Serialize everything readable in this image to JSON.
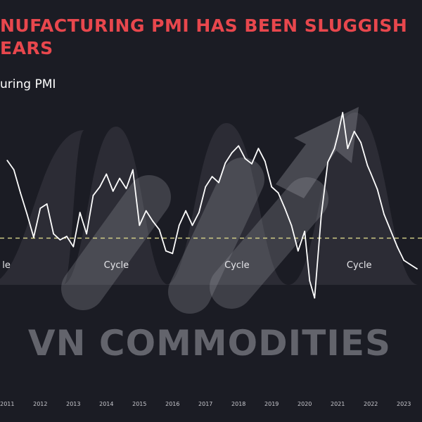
{
  "title_lines": [
    "NUFACTURING PMI HAS BEEN SLUGGISH",
    "EARS"
  ],
  "series_label": "uring PMI",
  "watermark": "VN COMMODITIES",
  "colors": {
    "background": "#1b1c24",
    "title": "#e8474d",
    "line": "#ffffff",
    "reference_line": "#d9d58a",
    "cycle_shape": "#3a3b44",
    "watermark": "#6b6c74"
  },
  "chart_data": {
    "type": "line",
    "title": "NUFACTURING PMI HAS BEEN SLUGGISH EARS",
    "series": [
      {
        "name": "uring PMI",
        "x": [
          2011.0,
          2011.2,
          2011.4,
          2011.6,
          2011.8,
          2012.0,
          2012.2,
          2012.4,
          2012.6,
          2012.8,
          2013.0,
          2013.2,
          2013.4,
          2013.6,
          2013.8,
          2014.0,
          2014.2,
          2014.4,
          2014.6,
          2014.8,
          2015.0,
          2015.2,
          2015.4,
          2015.6,
          2015.8,
          2016.0,
          2016.2,
          2016.4,
          2016.6,
          2016.8,
          2017.0,
          2017.2,
          2017.4,
          2017.6,
          2017.8,
          2018.0,
          2018.2,
          2018.4,
          2018.6,
          2018.8,
          2019.0,
          2019.2,
          2019.4,
          2019.6,
          2019.8,
          2020.0,
          2020.15,
          2020.3,
          2020.5,
          2020.7,
          2020.9,
          2021.0,
          2021.15,
          2021.3,
          2021.5,
          2021.7,
          2021.9,
          2022.0,
          2022.2,
          2022.4,
          2022.6,
          2022.8,
          2023.0,
          2023.2,
          2023.4
        ],
        "values": [
          59.1,
          58.0,
          55.3,
          52.8,
          50.1,
          53.5,
          54.0,
          50.5,
          49.8,
          50.2,
          49.0,
          53.0,
          50.5,
          55.0,
          56.0,
          57.5,
          55.5,
          57.0,
          55.8,
          58.0,
          51.5,
          53.2,
          52.0,
          51.0,
          48.5,
          48.2,
          51.5,
          53.2,
          51.5,
          53.0,
          56.0,
          57.2,
          56.5,
          58.8,
          60.0,
          60.8,
          59.3,
          58.7,
          60.5,
          59.0,
          56.0,
          55.3,
          53.5,
          51.5,
          48.5,
          50.8,
          45.0,
          43.0,
          52.6,
          58.9,
          60.5,
          62.0,
          64.7,
          60.5,
          62.5,
          61.2,
          58.5,
          57.6,
          55.7,
          52.8,
          50.9,
          49.0,
          47.4,
          46.9,
          46.4
        ]
      }
    ],
    "x_tick_labels": [
      "2011",
      "2012",
      "2013",
      "2014",
      "2015",
      "2016",
      "2017",
      "2018",
      "2019",
      "2020",
      "2021",
      "2022",
      "2023"
    ],
    "x_ticks": [
      2011,
      2012,
      2013,
      2014,
      2015,
      2016,
      2017,
      2018,
      2019,
      2020,
      2021,
      2022,
      2023
    ],
    "xlim": [
      2010.78,
      2023.55
    ],
    "ylim": [
      40,
      68
    ],
    "reference_line": {
      "value": 50,
      "style": "dashed"
    },
    "cycle_labels": [
      "le",
      "Cycle",
      "Cycle",
      "Cycle"
    ],
    "cycle_label_x": [
      2010.85,
      2014.3,
      2017.95,
      2021.65
    ],
    "grid": false,
    "legend": "none"
  }
}
